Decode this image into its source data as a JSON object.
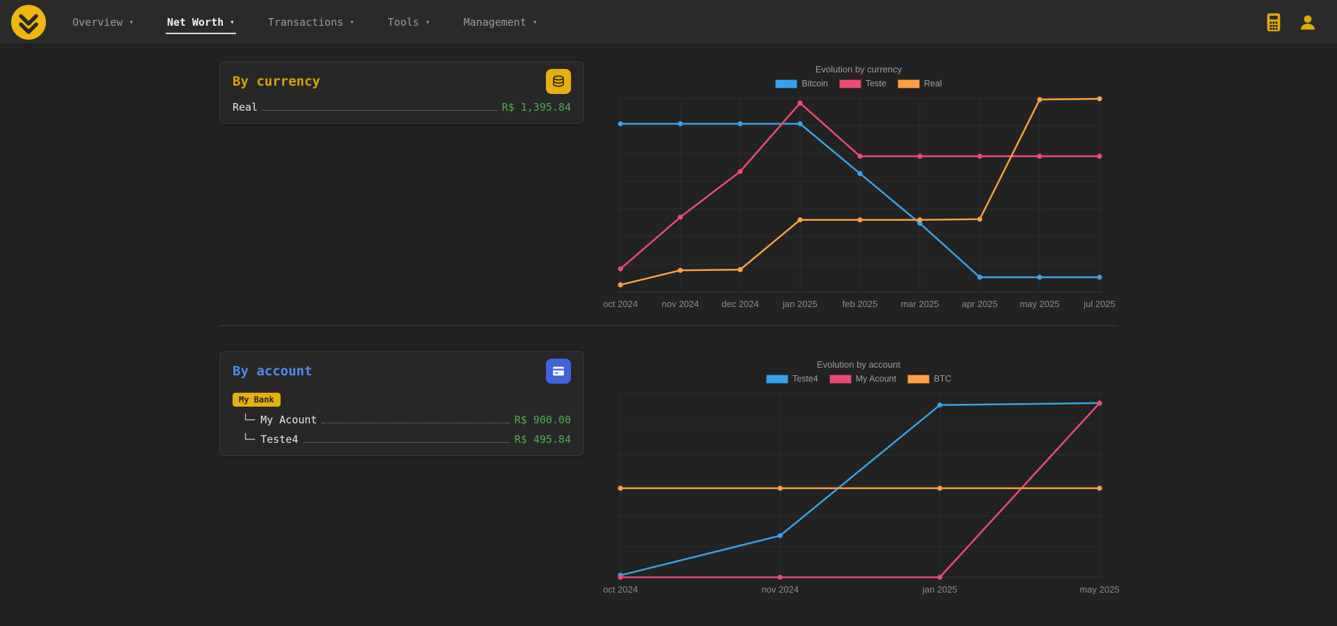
{
  "navbar": {
    "caret": "▾",
    "items": [
      {
        "label": "Overview",
        "active": false
      },
      {
        "label": "Net Worth",
        "active": true
      },
      {
        "label": "Transactions",
        "active": false
      },
      {
        "label": "Tools",
        "active": false
      },
      {
        "label": "Management",
        "active": false
      }
    ],
    "icons": {
      "logo": "double-chevron-down-coin",
      "calculator": "calculator",
      "user": "person"
    }
  },
  "colors": {
    "accent_yellow": "#e5b00e",
    "accent_blue": "#3e63dd",
    "title_gold": "#d9a406",
    "title_blue": "#4e8cf5",
    "positive_green": "#4caf50",
    "page_bg": "#222222",
    "card_bg": "#272727"
  },
  "by_currency": {
    "title": "By currency",
    "icon": "coins-stack",
    "rows": [
      {
        "label": "Real",
        "value": "R$ 1,395.84"
      }
    ]
  },
  "by_account": {
    "title": "By account",
    "icon": "bank-card",
    "bank_badge": "My Bank",
    "rows": [
      {
        "prefix": "└─",
        "label": "My Acount",
        "value": "R$ 900.00"
      },
      {
        "prefix": "└─",
        "label": "Teste4",
        "value": "R$ 495.84"
      }
    ]
  },
  "chart_data": [
    {
      "type": "line",
      "title": "Evolution by currency",
      "categories": [
        "oct 2024",
        "nov 2024",
        "dec 2024",
        "jan 2025",
        "feb 2025",
        "mar 2025",
        "apr 2025",
        "may 2025",
        "jul 2025"
      ],
      "series": [
        {
          "name": "Bitcoin",
          "color": "#36a2eb",
          "values": [
            1215,
            1215,
            1215,
            1215,
            855,
            495,
            105,
            105,
            105
          ]
        },
        {
          "name": "Teste",
          "color": "#ec4c74",
          "values": [
            165,
            540,
            870,
            1365,
            980,
            980,
            980,
            980,
            980
          ]
        },
        {
          "name": "Real",
          "color": "#ff9f40",
          "values": [
            50,
            155,
            160,
            520,
            520,
            520,
            525,
            1390,
            1395.84
          ]
        }
      ],
      "xlabel": "",
      "ylabel": "",
      "ylim": [
        0,
        1400
      ],
      "y_divisions": 7,
      "grid": true,
      "legend_position": "top"
    },
    {
      "type": "line",
      "title": "Evolution by account",
      "categories": [
        "oct 2024",
        "nov 2024",
        "jan 2025",
        "may 2025"
      ],
      "series": [
        {
          "name": "Teste4",
          "color": "#36a2eb",
          "values": [
            10,
            215,
            890,
            900
          ]
        },
        {
          "name": "My Acount",
          "color": "#ec4c74",
          "values": [
            0,
            0,
            0,
            900
          ]
        },
        {
          "name": "BTC",
          "color": "#ff9f40",
          "values": [
            460,
            460,
            460,
            460
          ]
        }
      ],
      "xlabel": "",
      "ylabel": "",
      "ylim": [
        0,
        950
      ],
      "y_divisions": 6,
      "grid": true,
      "legend_position": "top"
    }
  ]
}
